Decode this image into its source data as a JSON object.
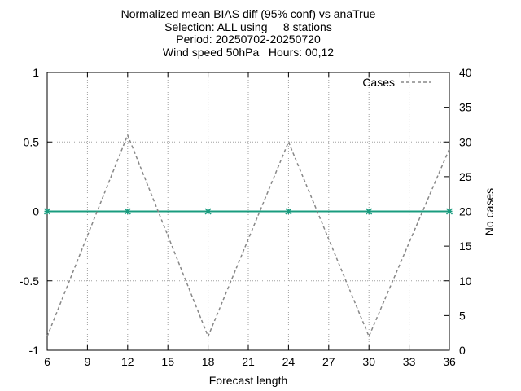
{
  "chart_data": {
    "type": "line",
    "title_lines": [
      "Normalized mean BIAS diff (95% conf) vs anaTrue",
      "Selection: ALL using     8 stations",
      "Period: 20250702-20250720",
      "Wind speed 50hPa   Hours: 00,12"
    ],
    "xlabel": "Forecast length",
    "ylabel": "",
    "y2label": "No cases",
    "xlim": [
      6,
      36
    ],
    "ylim": [
      -1,
      1
    ],
    "y2lim": [
      0,
      40
    ],
    "x_ticks": [
      6,
      9,
      12,
      15,
      18,
      21,
      24,
      27,
      30,
      33,
      36
    ],
    "y_ticks": [
      -1,
      -0.5,
      0,
      0.5,
      1
    ],
    "y_tick_labels": [
      "-1",
      "-0.5",
      "0",
      "0.5",
      "1"
    ],
    "y2_ticks": [
      0,
      5,
      10,
      15,
      20,
      25,
      30,
      35,
      40
    ],
    "grid": true,
    "legend_position": "top-right",
    "series": [
      {
        "color": "#1a9c7f",
        "axis": "left",
        "style": "solid",
        "markers": true,
        "x": [
          6,
          12,
          18,
          24,
          30,
          36
        ],
        "y": [
          0,
          0,
          0,
          0,
          0,
          0
        ]
      },
      {
        "name": "Cases",
        "color": "#888888",
        "axis": "right",
        "style": "dashed",
        "markers": false,
        "x": [
          6,
          12,
          18,
          24,
          30,
          36
        ],
        "y": [
          2,
          31,
          2,
          30,
          2,
          29
        ]
      }
    ]
  }
}
